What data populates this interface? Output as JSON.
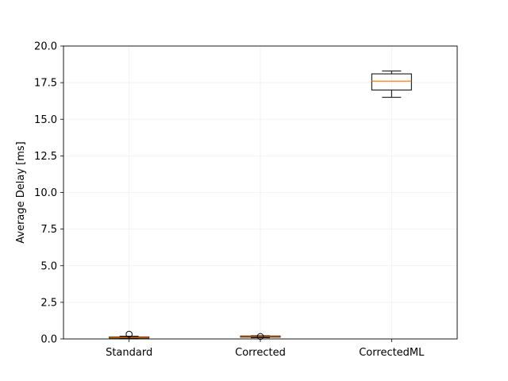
{
  "chart_data": {
    "type": "box",
    "title": "",
    "xlabel": "",
    "ylabel": "Average Delay [ms]",
    "categories": [
      "Standard",
      "Corrected",
      "CorrectedML"
    ],
    "ylim": [
      0,
      20
    ],
    "yticks": [
      "0.0",
      "2.5",
      "5.0",
      "7.5",
      "10.0",
      "12.5",
      "15.0",
      "17.5",
      "20.0"
    ],
    "grid": true,
    "boxes": [
      {
        "category": "Standard",
        "whisker_low": 0.02,
        "q1": 0.06,
        "median": 0.1,
        "q3": 0.14,
        "whisker_high": 0.18,
        "outliers": [
          0.32
        ]
      },
      {
        "category": "Corrected",
        "whisker_low": 0.08,
        "q1": 0.12,
        "median": 0.16,
        "q3": 0.2,
        "whisker_high": 0.22,
        "outliers": [
          0.17
        ]
      },
      {
        "category": "CorrectedML",
        "whisker_low": 16.5,
        "q1": 17.0,
        "median": 17.6,
        "q3": 18.1,
        "whisker_high": 18.3,
        "outliers": []
      }
    ],
    "colors": {
      "box": "#000000",
      "median": "#ff7f0e",
      "grid": "#eeeeee",
      "axis": "#000000"
    }
  }
}
